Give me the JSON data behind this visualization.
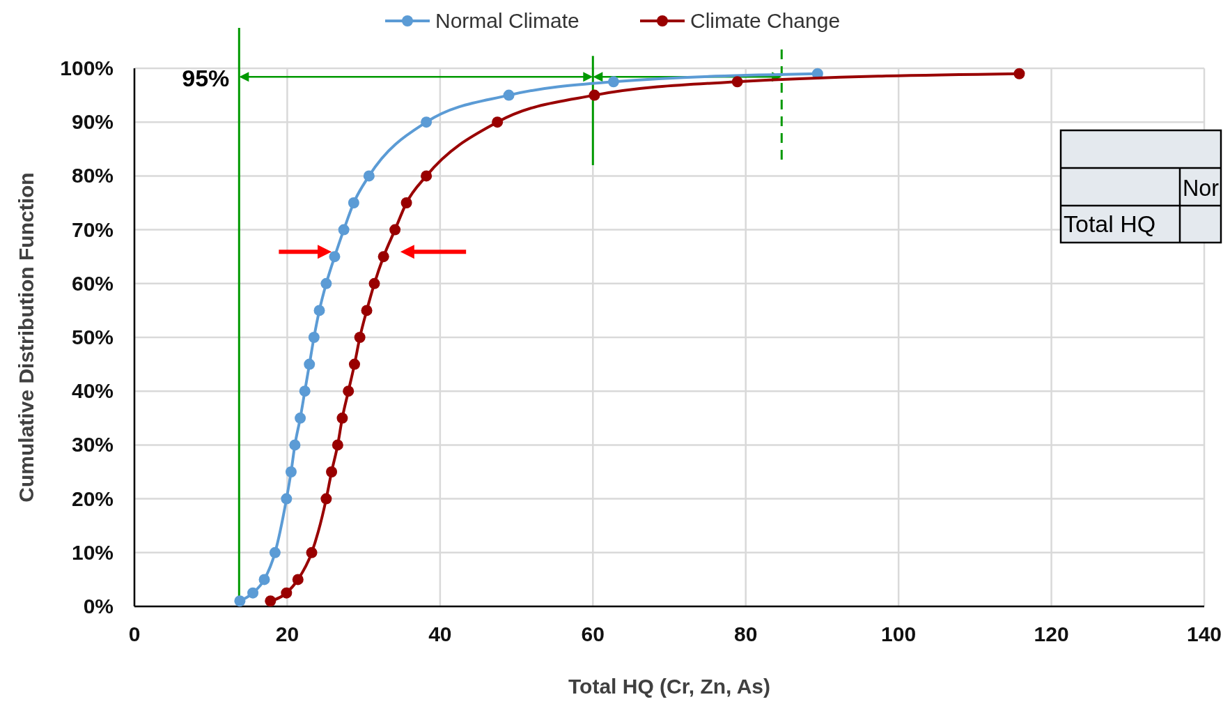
{
  "chart_data": {
    "type": "line",
    "xlabel": "Total HQ (Cr, Zn, As)",
    "ylabel": "Cumulative Distribution Function",
    "xlim": [
      0,
      140
    ],
    "xticks": [
      0,
      20,
      40,
      60,
      80,
      100,
      120,
      140
    ],
    "ylim": [
      0,
      100
    ],
    "yticks": [
      {
        "value": 0,
        "label": "0%"
      },
      {
        "value": 10,
        "label": "10%"
      },
      {
        "value": 20,
        "label": "20%"
      },
      {
        "value": 30,
        "label": "30%"
      },
      {
        "value": 40,
        "label": "40%"
      },
      {
        "value": 50,
        "label": "50%"
      },
      {
        "value": 60,
        "label": "60%"
      },
      {
        "value": 70,
        "label": "70%"
      },
      {
        "value": 80,
        "label": "80%"
      },
      {
        "value": 90,
        "label": "90%"
      },
      {
        "value": 100,
        "label": "100%"
      }
    ],
    "grid": true,
    "legend": "top",
    "marker": "circle",
    "line_style": "solid",
    "series": [
      {
        "name": "Normal Climate",
        "color": "#5b9bd5",
        "x": [
          13.8,
          15.5,
          17.0,
          18.4,
          19.9,
          20.5,
          21.0,
          21.7,
          22.3,
          22.9,
          23.5,
          24.2,
          25.1,
          26.2,
          27.4,
          28.7,
          30.7,
          38.2,
          49.0,
          62.7,
          89.4
        ],
        "values": [
          1,
          2.5,
          5,
          10,
          20,
          25,
          30,
          35,
          40,
          45,
          50,
          55,
          60,
          65,
          70,
          75,
          80,
          90,
          95,
          97.5,
          99
        ]
      },
      {
        "name": "Climate Change",
        "color": "#990000",
        "x": [
          17.8,
          19.9,
          21.4,
          23.2,
          25.1,
          25.8,
          26.6,
          27.2,
          28.0,
          28.8,
          29.5,
          30.4,
          31.4,
          32.6,
          34.1,
          35.6,
          38.2,
          47.5,
          60.2,
          78.9,
          115.8
        ],
        "values": [
          1,
          2.5,
          5,
          10,
          20,
          25,
          30,
          35,
          40,
          45,
          50,
          55,
          60,
          65,
          70,
          75,
          80,
          90,
          95,
          97.5,
          99
        ]
      }
    ],
    "ref_lines": [
      {
        "axis": "x",
        "value": 13.7,
        "color": "#009900",
        "line_style": "solid"
      }
    ],
    "annotations": [
      "95%",
      "Total HQ",
      "Nor"
    ]
  }
}
